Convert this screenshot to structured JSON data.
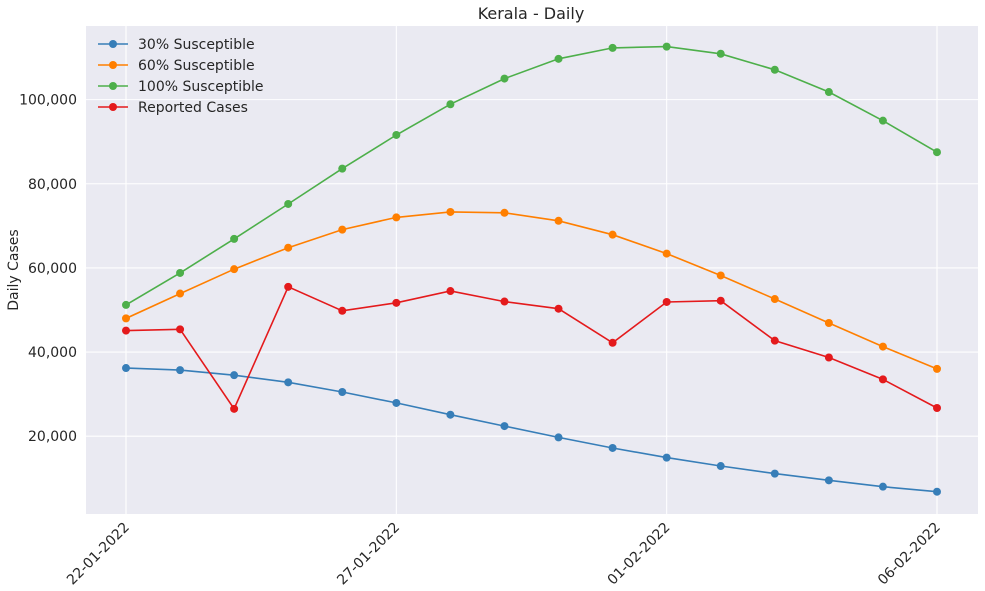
{
  "chart_data": {
    "type": "line",
    "title": "Kerala - Daily",
    "xlabel": "",
    "ylabel": "Daily Cases",
    "x": [
      "22-01-2022",
      "23-01-2022",
      "24-01-2022",
      "25-01-2022",
      "26-01-2022",
      "27-01-2022",
      "28-01-2022",
      "29-01-2022",
      "30-01-2022",
      "31-01-2022",
      "01-02-2022",
      "02-02-2022",
      "03-02-2022",
      "04-02-2022",
      "05-02-2022",
      "06-02-2022"
    ],
    "x_tick_labels": [
      "22-01-2022",
      "27-01-2022",
      "01-02-2022",
      "06-02-2022"
    ],
    "y_ticks": [
      20000,
      40000,
      60000,
      80000,
      100000
    ],
    "y_tick_labels": [
      "20,000",
      "40,000",
      "60,000",
      "80,000",
      "100,000"
    ],
    "ylim": [
      1500,
      117500
    ],
    "grid": true,
    "legend_position": "upper-left",
    "background": "#eaeaf2",
    "series": [
      {
        "name": "30% Susceptible",
        "color": "#377eb8",
        "values": [
          36200,
          35700,
          34500,
          32800,
          30500,
          27900,
          25100,
          22400,
          19700,
          17200,
          14900,
          12900,
          11100,
          9500,
          8000,
          6800
        ]
      },
      {
        "name": "60% Susceptible",
        "color": "#ff7f00",
        "values": [
          48000,
          53900,
          59700,
          64800,
          69100,
          72000,
          73300,
          73100,
          71200,
          67900,
          63400,
          58200,
          52600,
          46900,
          41300,
          36000
        ]
      },
      {
        "name": "100% Susceptible",
        "color": "#4daf4a",
        "values": [
          51200,
          58800,
          66900,
          75200,
          83600,
          91600,
          98900,
          105000,
          109700,
          112300,
          112600,
          110900,
          107100,
          101800,
          95000,
          87500
        ]
      },
      {
        "name": "Reported Cases",
        "color": "#e41a1c",
        "values": [
          45100,
          45400,
          26500,
          55500,
          49800,
          51700,
          54500,
          52000,
          50300,
          42200,
          51900,
          52200,
          42700,
          38700,
          33500,
          26700
        ]
      }
    ]
  }
}
